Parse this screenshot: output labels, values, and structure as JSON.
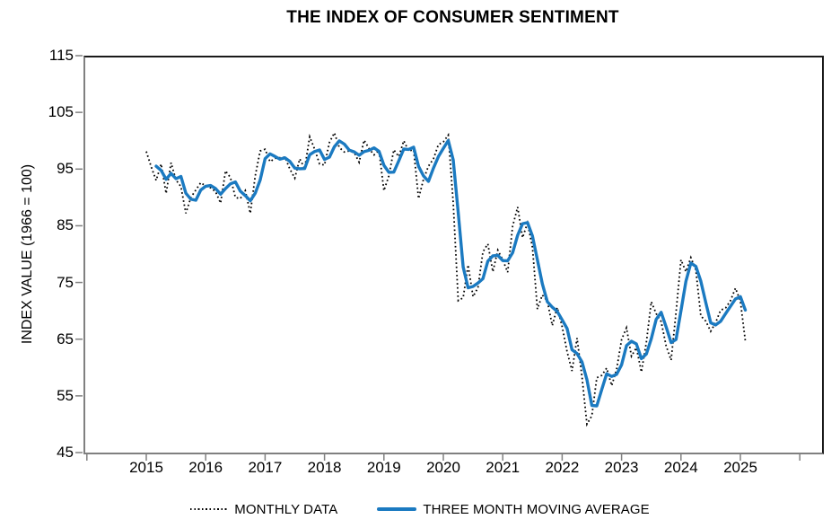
{
  "title": "THE INDEX OF CONSUMER SENTIMENT",
  "y_axis": {
    "label": "INDEX VALUE (1966 = 100)",
    "ticks": [
      45,
      55,
      65,
      75,
      85,
      95,
      105,
      115
    ],
    "min": 45,
    "max": 115
  },
  "x_axis": {
    "tick_labels": [
      "2015",
      "2016",
      "2017",
      "2018",
      "2019",
      "2020",
      "2021",
      "2022",
      "2023",
      "2024",
      "2025"
    ]
  },
  "legend": {
    "items": [
      {
        "label": "MONTHLY DATA",
        "style": "dotted",
        "color": "#000000"
      },
      {
        "label": "THREE MONTH MOVING AVERAGE",
        "style": "solid",
        "color": "#1b7ac1"
      }
    ]
  },
  "colors": {
    "monthly_line": "#000000",
    "average_line": "#1b7ac1",
    "axis_gray": "#808080",
    "axis_black": "#1a1a1a"
  },
  "chart_data": {
    "type": "line",
    "title": "THE INDEX OF CONSUMER SENTIMENT",
    "xlabel": "",
    "ylabel": "INDEX VALUE (1966 = 100)",
    "ylim": [
      45,
      115
    ],
    "x_start_month": "2015-01",
    "x_end_month": "2025-02",
    "grid": false,
    "legend_position": "bottom",
    "series": [
      {
        "name": "MONTHLY DATA",
        "style": "dotted",
        "color": "#000000",
        "values": [
          98.1,
          95.4,
          93.0,
          95.9,
          90.7,
          96.1,
          93.1,
          91.9,
          87.2,
          90.0,
          91.3,
          92.6,
          92.0,
          91.7,
          91.0,
          89.0,
          94.7,
          93.5,
          90.0,
          89.8,
          91.2,
          87.2,
          93.8,
          98.2,
          98.5,
          96.3,
          96.9,
          97.0,
          97.1,
          95.0,
          93.4,
          96.8,
          95.1,
          100.7,
          98.5,
          95.9,
          95.7,
          99.7,
          101.4,
          98.8,
          98.0,
          98.2,
          97.9,
          96.2,
          100.1,
          98.6,
          97.5,
          98.3,
          91.2,
          93.8,
          98.4,
          97.2,
          100.0,
          98.2,
          98.4,
          89.8,
          93.2,
          95.5,
          96.8,
          99.3,
          99.8,
          101.0,
          89.1,
          71.8,
          72.3,
          78.1,
          72.5,
          74.1,
          80.4,
          81.8,
          76.9,
          80.7,
          79.0,
          76.8,
          84.9,
          88.3,
          82.9,
          85.5,
          81.2,
          70.3,
          72.8,
          71.7,
          67.4,
          70.6,
          67.2,
          62.8,
          59.4,
          65.2,
          58.4,
          50.0,
          51.5,
          58.2,
          58.6,
          59.9,
          56.8,
          59.7,
          64.9,
          67.0,
          62.0,
          63.5,
          59.2,
          64.4,
          71.6,
          69.5,
          68.1,
          63.8,
          61.3,
          69.7,
          79.0,
          76.9,
          79.4,
          77.2,
          69.1,
          68.2,
          66.4,
          67.9,
          70.1,
          70.5,
          71.8,
          74.0,
          71.7,
          64.7
        ]
      },
      {
        "name": "THREE MONTH MOVING AVERAGE",
        "style": "solid",
        "color": "#1b7ac1",
        "derivation": "trailing_mean_3_of_MONTHLY_DATA"
      }
    ]
  }
}
